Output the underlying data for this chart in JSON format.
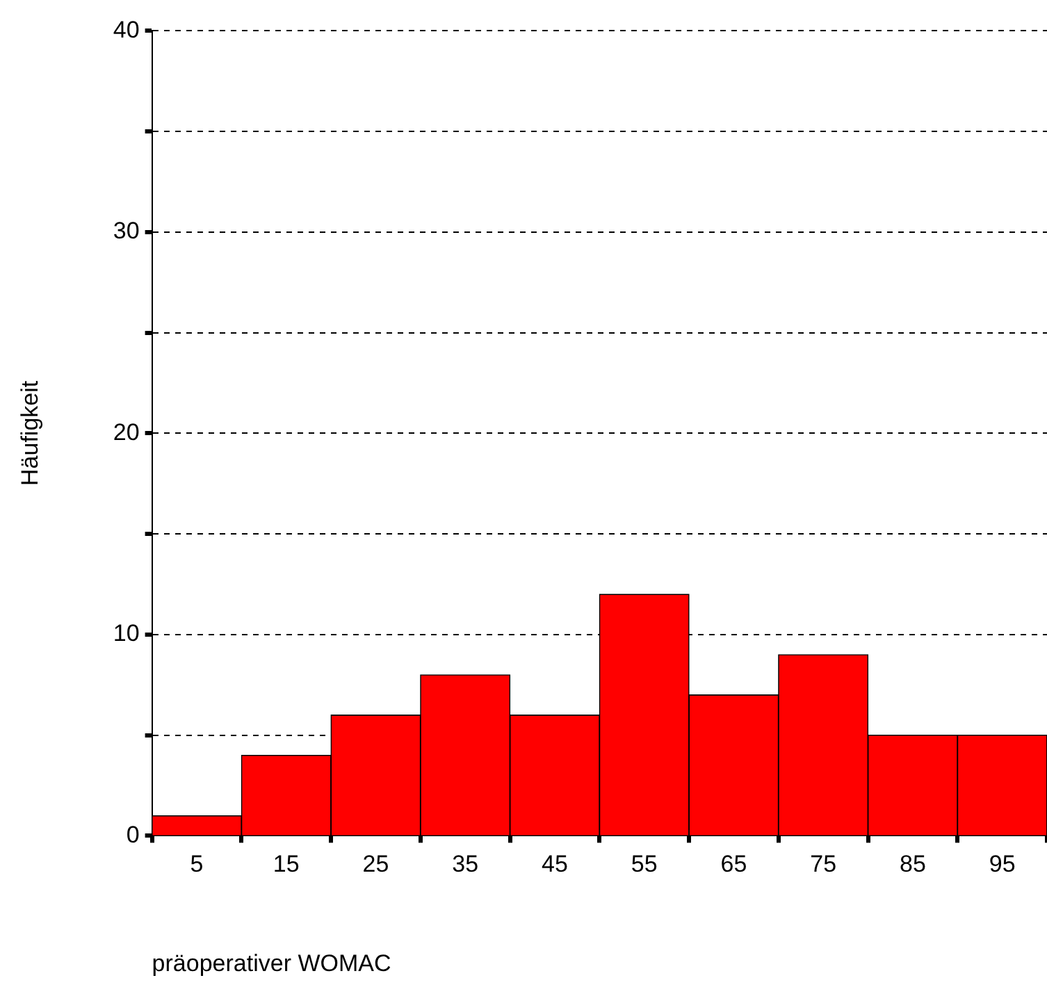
{
  "chart_data": {
    "type": "histogram",
    "xlabel": "präoperativer WOMAC",
    "ylabel": "Häufigkeit",
    "bins": [
      0,
      10,
      20,
      30,
      40,
      50,
      60,
      70,
      80,
      90,
      100
    ],
    "values": [
      1,
      4,
      6,
      8,
      6,
      12,
      7,
      9,
      5,
      5
    ],
    "color": "#ff0000",
    "xlim": [
      0,
      100
    ],
    "xticks": [
      5,
      15,
      25,
      35,
      45,
      55,
      65,
      75,
      85,
      95
    ],
    "ylim": [
      0,
      40
    ],
    "yticks": [
      0,
      {
        "value": 5,
        "label": null
      },
      10,
      {
        "value": 15,
        "label": null
      },
      20,
      {
        "value": 25,
        "label": null
      },
      30,
      {
        "value": 35,
        "label": null
      },
      40
    ],
    "grid": "y"
  }
}
